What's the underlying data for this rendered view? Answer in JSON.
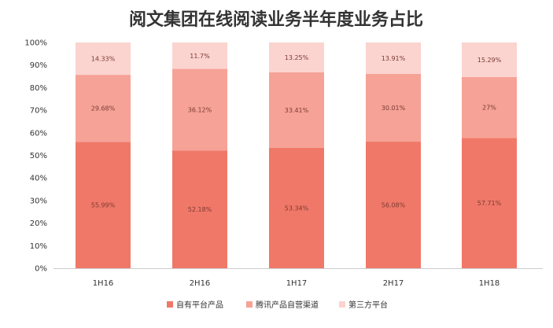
{
  "chart_data": {
    "type": "bar",
    "stacked": true,
    "title": "阅文集团在线阅读业务半年度业务占比",
    "categories": [
      "1H16",
      "2H16",
      "1H17",
      "2H17",
      "1H18"
    ],
    "ylim": [
      0,
      100
    ],
    "yticks": [
      "0%",
      "10%",
      "20%",
      "30%",
      "40%",
      "50%",
      "60%",
      "70%",
      "80%",
      "90%",
      "100%"
    ],
    "grid": false,
    "legend_position": "bottom",
    "series": [
      {
        "name": "自有平台产品",
        "color": "#f07868",
        "values": [
          55.99,
          52.18,
          53.34,
          56.08,
          57.71
        ],
        "labels": [
          "55.99%",
          "52.18%",
          "53.34%",
          "56.08%",
          "57.71%"
        ]
      },
      {
        "name": "腾讯产品自营渠道",
        "color": "#f6a296",
        "values": [
          29.68,
          36.12,
          33.41,
          30.01,
          27
        ],
        "labels": [
          "29.68%",
          "36.12%",
          "33.41%",
          "30.01%",
          "27%"
        ]
      },
      {
        "name": "第三方平台",
        "color": "#fbd3cf",
        "values": [
          14.33,
          11.7,
          13.25,
          13.91,
          15.29
        ],
        "labels": [
          "14.33%",
          "11.7%",
          "13.25%",
          "13.91%",
          "15.29%"
        ]
      }
    ]
  }
}
